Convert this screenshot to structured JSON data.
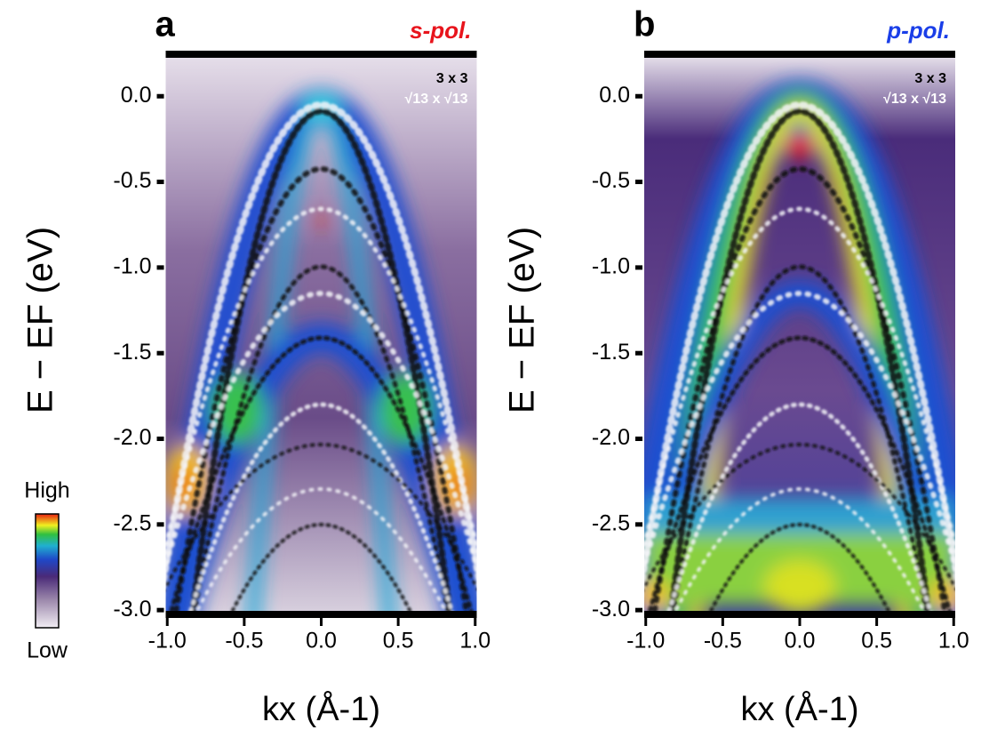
{
  "chart_data": [
    {
      "type": "heatmap",
      "panel": "a",
      "polarization": "s-pol.",
      "polarization_color": "#e8141c",
      "annotations": [
        "3 x 3",
        "√13 x √13"
      ],
      "xlabel": "kx (Å-1)",
      "ylabel": "E − EF (eV)",
      "xlim": [
        -1.01,
        1.01
      ],
      "ylim": [
        -3.02,
        0.24
      ],
      "xticks": [
        {
          "value": -1.0,
          "label": "-1.0"
        },
        {
          "value": -0.5,
          "label": "-0.5"
        },
        {
          "value": 0.0,
          "label": "0.0"
        },
        {
          "value": 0.5,
          "label": "0.5"
        },
        {
          "value": 1.0,
          "label": "1.0"
        }
      ],
      "yticks": [
        {
          "value": 0.0,
          "label": "0.0"
        },
        {
          "value": -0.5,
          "label": "-0.5"
        },
        {
          "value": -1.0,
          "label": "-1.0"
        },
        {
          "value": -1.5,
          "label": "-1.5"
        },
        {
          "value": -2.0,
          "label": "-2.0"
        },
        {
          "value": -2.5,
          "label": "-2.5"
        },
        {
          "value": -3.0,
          "label": "-3.0"
        }
      ]
    },
    {
      "type": "heatmap",
      "panel": "b",
      "polarization": "p-pol.",
      "polarization_color": "#1a3ee8",
      "annotations": [
        "3 x 3",
        "√13 x √13"
      ],
      "xlabel": "kx (Å-1)",
      "ylabel": "E − EF (eV)",
      "xlim": [
        -1.01,
        1.01
      ],
      "ylim": [
        -3.02,
        0.24
      ],
      "xticks": [
        {
          "value": -1.0,
          "label": "-1.0"
        },
        {
          "value": -0.5,
          "label": "-0.5"
        },
        {
          "value": 0.0,
          "label": "0.0"
        },
        {
          "value": 0.5,
          "label": "0.5"
        },
        {
          "value": 1.0,
          "label": "1.0"
        }
      ],
      "yticks": [
        {
          "value": 0.0,
          "label": "0.0"
        },
        {
          "value": -0.5,
          "label": "-0.5"
        },
        {
          "value": -1.0,
          "label": "-1.0"
        },
        {
          "value": -1.5,
          "label": "-1.5"
        },
        {
          "value": -2.0,
          "label": "-2.0"
        },
        {
          "value": -2.5,
          "label": "-2.5"
        },
        {
          "value": -3.0,
          "label": "-3.0"
        }
      ]
    }
  ],
  "colorbar": {
    "high": "High",
    "low": "Low"
  }
}
